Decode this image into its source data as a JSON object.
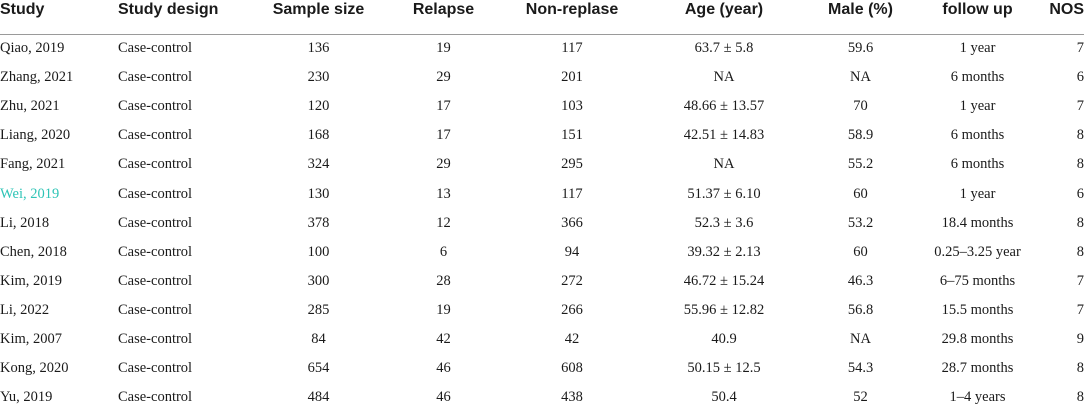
{
  "columns": {
    "study": "Study",
    "design": "Study design",
    "sample": "Sample size",
    "relapse": "Relapse",
    "nonrelapse": "Non-replase",
    "age": "Age (year)",
    "male": "Male (%)",
    "followup": "follow up",
    "nos": "NOS"
  },
  "rows": [
    {
      "study": "Qiao, 2019",
      "design": "Case-control",
      "sample": "136",
      "relapse": "19",
      "nonrelapse": "117",
      "age": "63.7 ± 5.8",
      "male": "59.6",
      "followup": "1 year",
      "nos": "7"
    },
    {
      "study": "Zhang, 2021",
      "design": "Case-control",
      "sample": "230",
      "relapse": "29",
      "nonrelapse": "201",
      "age": "NA",
      "male": "NA",
      "followup": "6 months",
      "nos": "6"
    },
    {
      "study": "Zhu, 2021",
      "design": "Case-control",
      "sample": "120",
      "relapse": "17",
      "nonrelapse": "103",
      "age": "48.66 ± 13.57",
      "male": "70",
      "followup": "1 year",
      "nos": "7"
    },
    {
      "study": "Liang, 2020",
      "design": "Case-control",
      "sample": "168",
      "relapse": "17",
      "nonrelapse": "151",
      "age": "42.51 ± 14.83",
      "male": "58.9",
      "followup": "6 months",
      "nos": "8"
    },
    {
      "study": "Fang, 2021",
      "design": "Case-control",
      "sample": "324",
      "relapse": "29",
      "nonrelapse": "295",
      "age": "NA",
      "male": "55.2",
      "followup": "6 months",
      "nos": "8"
    },
    {
      "study": "Wei, 2019",
      "design": "Case-control",
      "sample": "130",
      "relapse": "13",
      "nonrelapse": "117",
      "age": "51.37 ± 6.10",
      "male": "60",
      "followup": "1 year",
      "nos": "6"
    },
    {
      "study": "Li, 2018",
      "design": "Case-control",
      "sample": "378",
      "relapse": "12",
      "nonrelapse": "366",
      "age": "52.3 ± 3.6",
      "male": "53.2",
      "followup": "18.4 months",
      "nos": "8"
    },
    {
      "study": "Chen, 2018",
      "design": "Case-control",
      "sample": "100",
      "relapse": "6",
      "nonrelapse": "94",
      "age": "39.32 ± 2.13",
      "male": "60",
      "followup": "0.25–3.25 year",
      "nos": "8"
    },
    {
      "study": "Kim, 2019",
      "design": "Case-control",
      "sample": "300",
      "relapse": "28",
      "nonrelapse": "272",
      "age": "46.72 ± 15.24",
      "male": "46.3",
      "followup": "6–75 months",
      "nos": "7"
    },
    {
      "study": "Li, 2022",
      "design": "Case-control",
      "sample": "285",
      "relapse": "19",
      "nonrelapse": "266",
      "age": "55.96 ± 12.82",
      "male": "56.8",
      "followup": "15.5 months",
      "nos": "7"
    },
    {
      "study": "Kim, 2007",
      "design": "Case-control",
      "sample": "84",
      "relapse": "42",
      "nonrelapse": "42",
      "age": "40.9",
      "male": "NA",
      "followup": "29.8 months",
      "nos": "9"
    },
    {
      "study": "Kong, 2020",
      "design": "Case-control",
      "sample": "654",
      "relapse": "46",
      "nonrelapse": "608",
      "age": "50.15 ± 12.5",
      "male": "54.3",
      "followup": "28.7 months",
      "nos": "8"
    },
    {
      "study": "Yu, 2019",
      "design": "Case-control",
      "sample": "484",
      "relapse": "46",
      "nonrelapse": "438",
      "age": "50.4",
      "male": "52",
      "followup": "1–4 years",
      "nos": "8"
    }
  ],
  "colors": {
    "text": "#1a1a1a",
    "highlight_link": "#2ec4b6",
    "header_rule": "#9a9a9a"
  }
}
